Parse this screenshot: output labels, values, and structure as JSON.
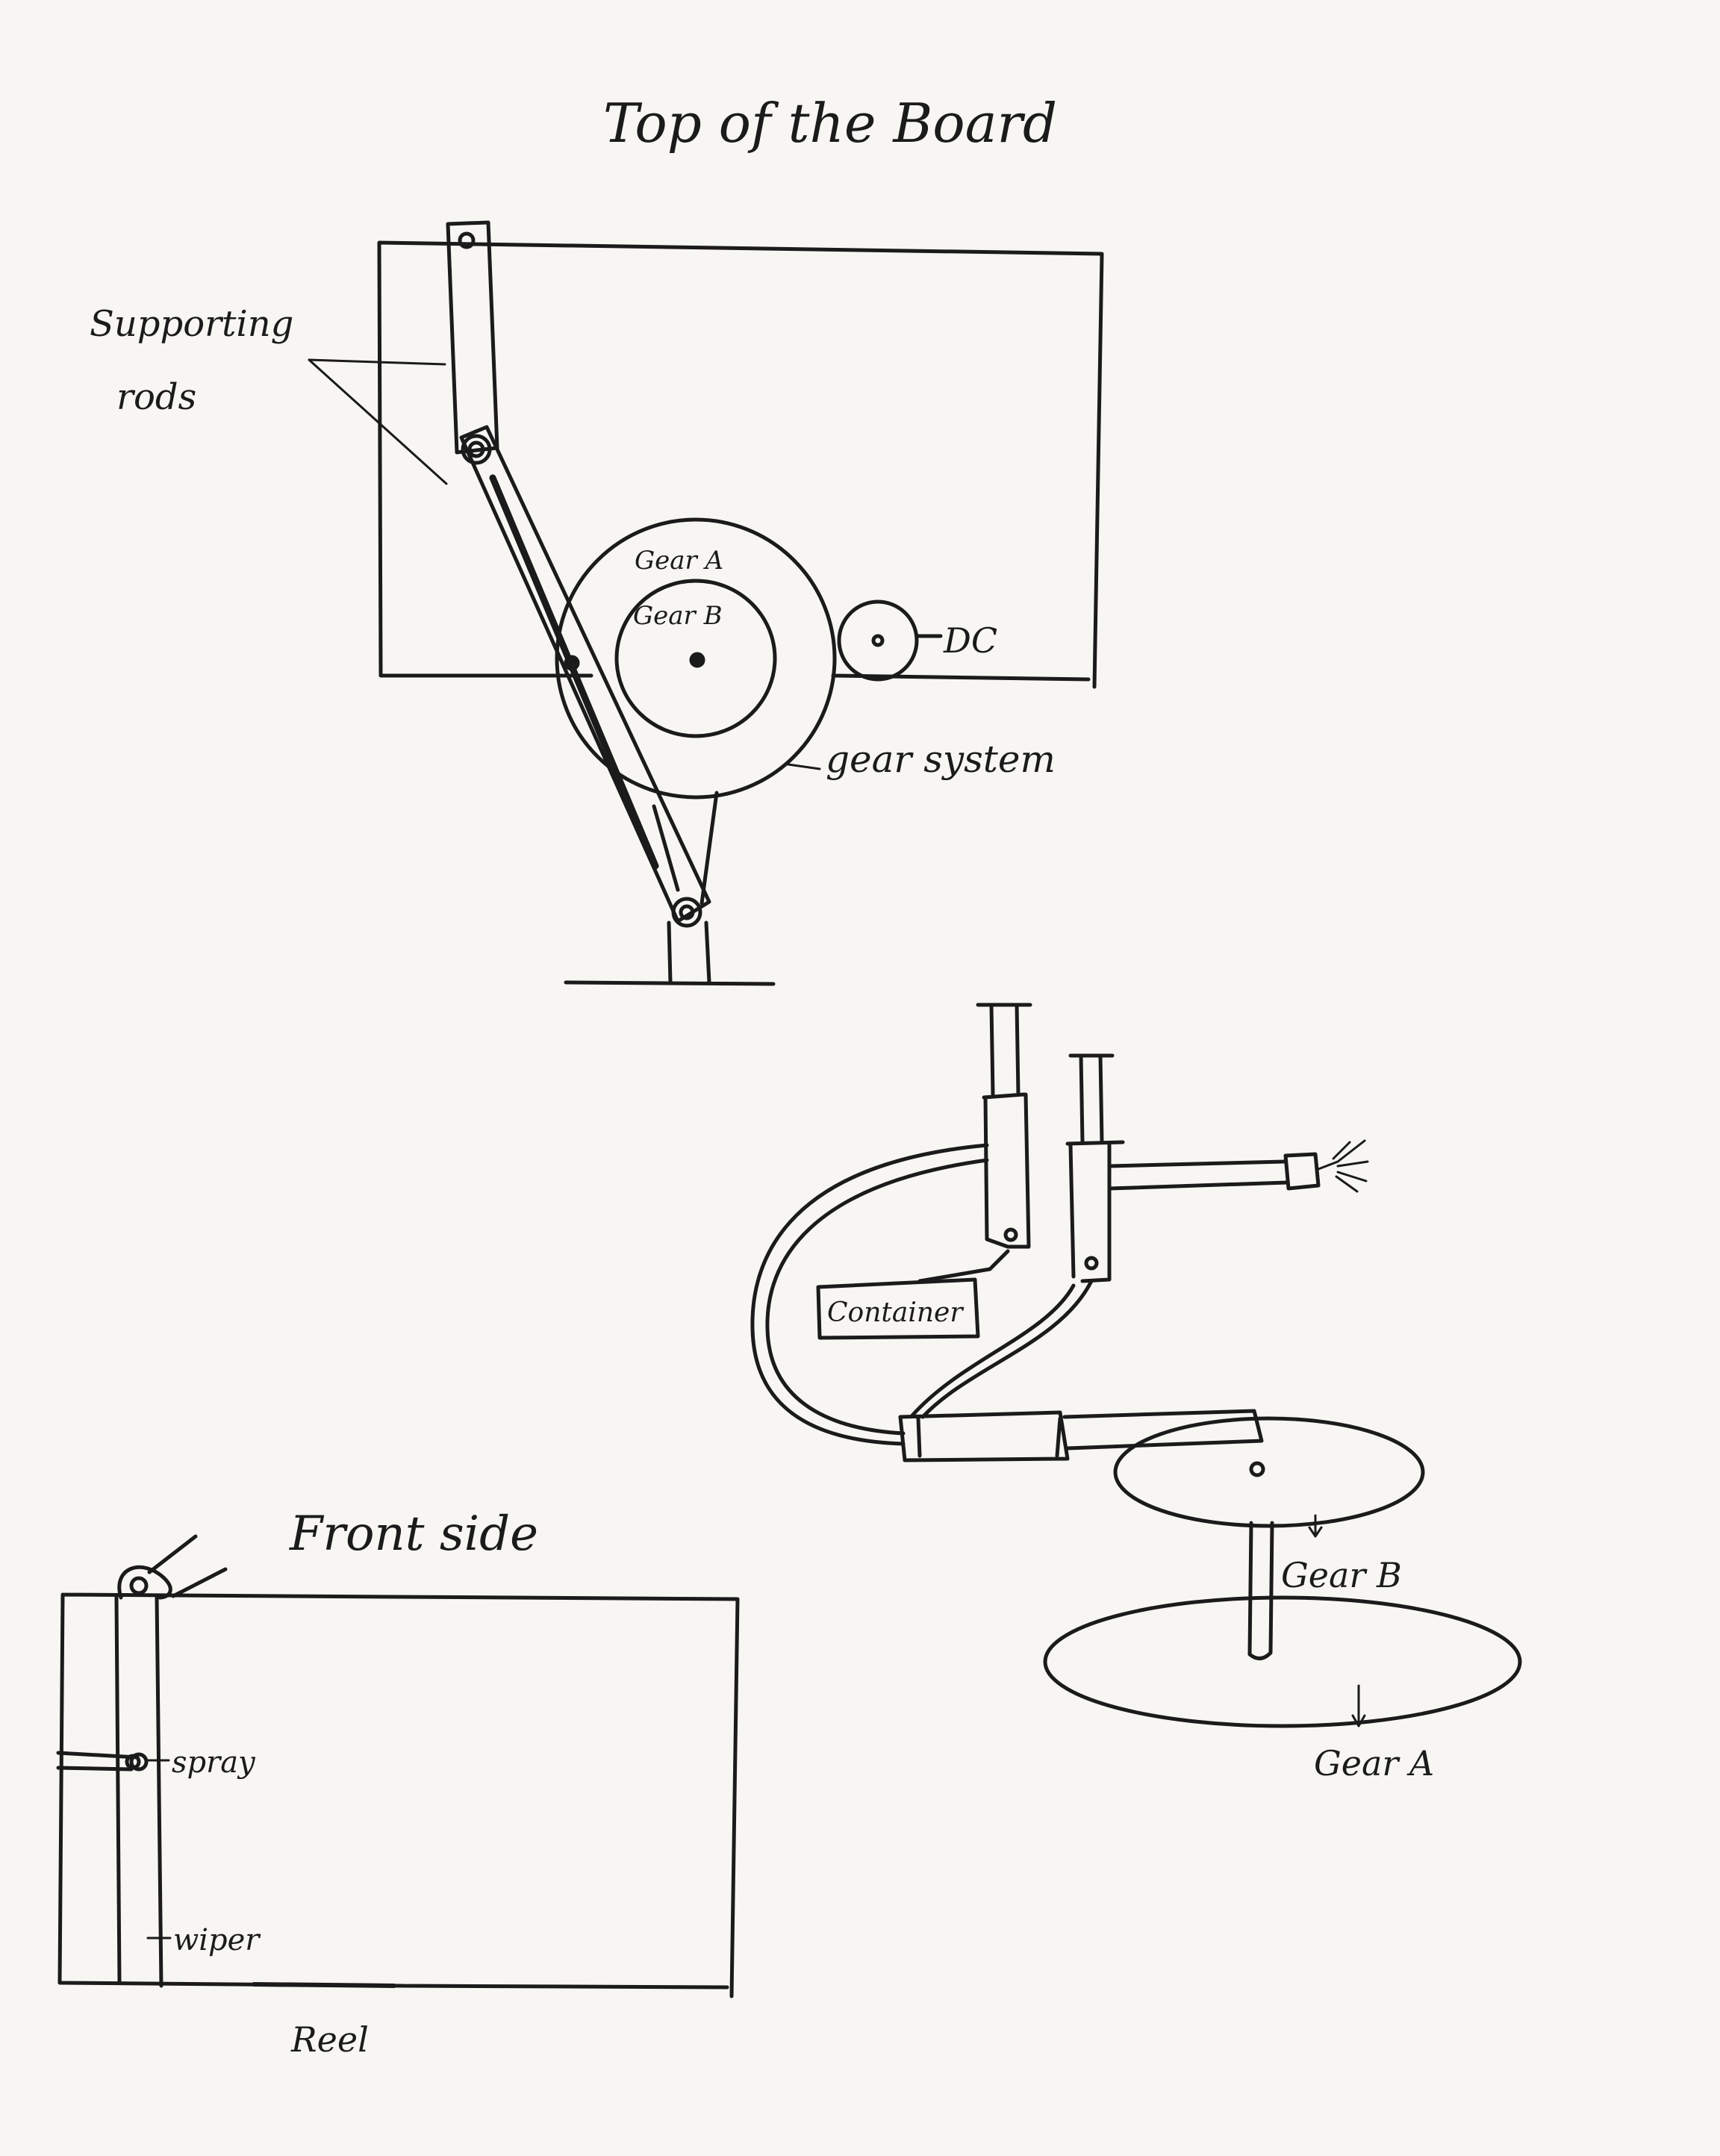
{
  "page": {
    "paper_color": "#f7f6f3",
    "ink_color": "#1b1b1b"
  },
  "top_view": {
    "title": "Top of the Board",
    "label_supporting_rods_line1": "Supporting",
    "label_supporting_rods_line2": "rods",
    "label_gear_a": "Gear A",
    "label_gear_b": "Gear B",
    "label_dc": "DC",
    "label_gear_system": "gear system"
  },
  "spray_system": {
    "label_container": "Container",
    "label_gear_b": "Gear B",
    "label_gear_a": "Gear A"
  },
  "front_view": {
    "title": "Front side",
    "label_spray": "spray",
    "label_wiper": "wiper",
    "label_reel": "Reel"
  }
}
